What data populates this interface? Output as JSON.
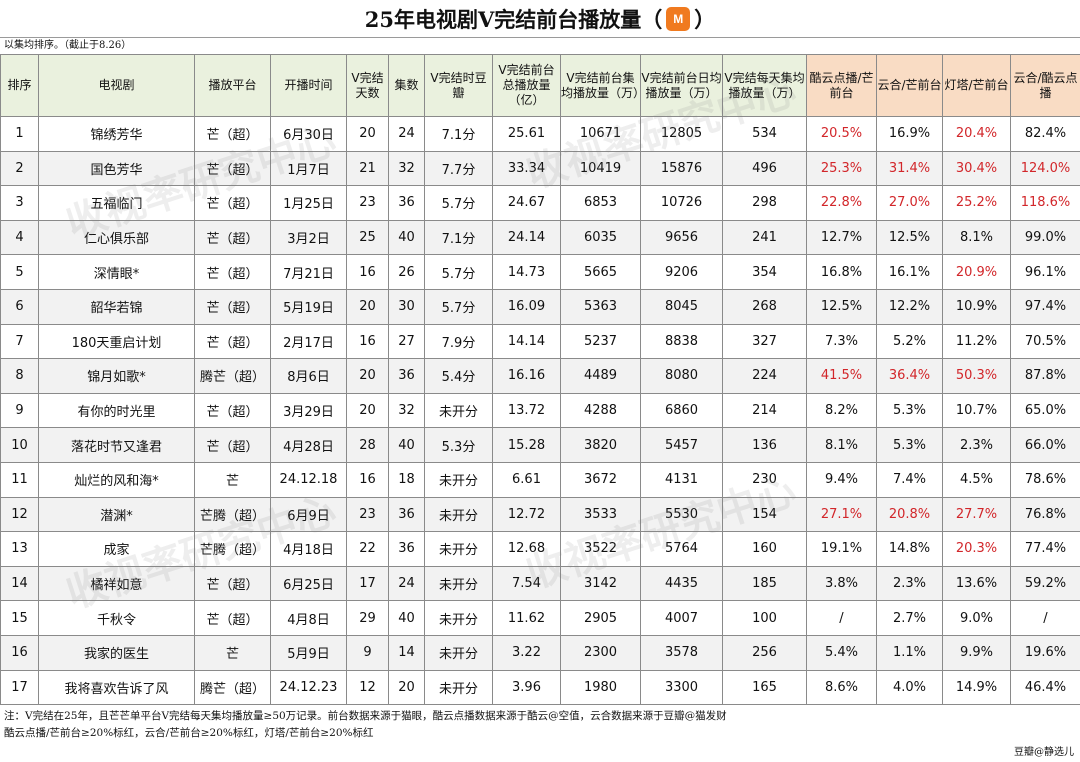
{
  "title": {
    "text": "25年电视剧V完结前台播放量（",
    "logo": "M",
    "close": "）"
  },
  "subtitle": "以集均排序。（截止于8.26）",
  "table": {
    "headers": [
      "排序",
      "电视剧",
      "播放平台",
      "开播时间",
      "V完结天数",
      "集数",
      "V完结时豆瓣",
      "V完结前台总播放量（亿）",
      "V完结前台集均播放量（万）",
      "V完结前台日均播放量（万）",
      "V完结每天集均播放量（万）",
      "酷云点播/芒前台",
      "云合/芒前台",
      "灯塔/芒前台",
      "云合/酷云点播"
    ],
    "rows": [
      [
        "1",
        "锦绣芳华",
        "芒（超）",
        "6月30日",
        "20",
        "24",
        "7.1分",
        "25.61",
        "10671",
        "12805",
        "534",
        "20.5%",
        "16.9%",
        "20.4%",
        "82.4%"
      ],
      [
        "2",
        "国色芳华",
        "芒（超）",
        "1月7日",
        "21",
        "32",
        "7.7分",
        "33.34",
        "10419",
        "15876",
        "496",
        "25.3%",
        "31.4%",
        "30.4%",
        "124.0%"
      ],
      [
        "3",
        "五福临门",
        "芒（超）",
        "1月25日",
        "23",
        "36",
        "5.7分",
        "24.67",
        "6853",
        "10726",
        "298",
        "22.8%",
        "27.0%",
        "25.2%",
        "118.6%"
      ],
      [
        "4",
        "仁心俱乐部",
        "芒（超）",
        "3月2日",
        "25",
        "40",
        "7.1分",
        "24.14",
        "6035",
        "9656",
        "241",
        "12.7%",
        "12.5%",
        "8.1%",
        "99.0%"
      ],
      [
        "5",
        "深情眼*",
        "芒（超）",
        "7月21日",
        "16",
        "26",
        "5.7分",
        "14.73",
        "5665",
        "9206",
        "354",
        "16.8%",
        "16.1%",
        "20.9%",
        "96.1%"
      ],
      [
        "6",
        "韶华若锦",
        "芒（超）",
        "5月19日",
        "20",
        "30",
        "5.7分",
        "16.09",
        "5363",
        "8045",
        "268",
        "12.5%",
        "12.2%",
        "10.9%",
        "97.4%"
      ],
      [
        "7",
        "180天重启计划",
        "芒（超）",
        "2月17日",
        "16",
        "27",
        "7.9分",
        "14.14",
        "5237",
        "8838",
        "327",
        "7.3%",
        "5.2%",
        "11.2%",
        "70.5%"
      ],
      [
        "8",
        "锦月如歌*",
        "腾芒（超）",
        "8月6日",
        "20",
        "36",
        "5.4分",
        "16.16",
        "4489",
        "8080",
        "224",
        "41.5%",
        "36.4%",
        "50.3%",
        "87.8%"
      ],
      [
        "9",
        "有你的时光里",
        "芒（超）",
        "3月29日",
        "20",
        "32",
        "未开分",
        "13.72",
        "4288",
        "6860",
        "214",
        "8.2%",
        "5.3%",
        "10.7%",
        "65.0%"
      ],
      [
        "10",
        "落花时节又逢君",
        "芒（超）",
        "4月28日",
        "28",
        "40",
        "5.3分",
        "15.28",
        "3820",
        "5457",
        "136",
        "8.1%",
        "5.3%",
        "2.3%",
        "66.0%"
      ],
      [
        "11",
        "灿烂的风和海*",
        "芒",
        "24.12.18",
        "16",
        "18",
        "未开分",
        "6.61",
        "3672",
        "4131",
        "230",
        "9.4%",
        "7.4%",
        "4.5%",
        "78.6%"
      ],
      [
        "12",
        "潜渊*",
        "芒腾（超）",
        "6月9日",
        "23",
        "36",
        "未开分",
        "12.72",
        "3533",
        "5530",
        "154",
        "27.1%",
        "20.8%",
        "27.7%",
        "76.8%"
      ],
      [
        "13",
        "成家",
        "芒腾（超）",
        "4月18日",
        "22",
        "36",
        "未开分",
        "12.68",
        "3522",
        "5764",
        "160",
        "19.1%",
        "14.8%",
        "20.3%",
        "77.4%"
      ],
      [
        "14",
        "橘祥如意",
        "芒（超）",
        "6月25日",
        "17",
        "24",
        "未开分",
        "7.54",
        "3142",
        "4435",
        "185",
        "3.8%",
        "2.3%",
        "13.6%",
        "59.2%"
      ],
      [
        "15",
        "千秋令",
        "芒（超）",
        "4月8日",
        "29",
        "40",
        "未开分",
        "11.62",
        "2905",
        "4007",
        "100",
        "/",
        "2.7%",
        "9.0%",
        "/"
      ],
      [
        "16",
        "我家的医生",
        "芒",
        "5月9日",
        "9",
        "14",
        "未开分",
        "3.22",
        "2300",
        "3578",
        "256",
        "5.4%",
        "1.1%",
        "9.9%",
        "19.6%"
      ],
      [
        "17",
        "我将喜欢告诉了风",
        "腾芒（超）",
        "24.12.23",
        "12",
        "20",
        "未开分",
        "3.96",
        "1980",
        "3300",
        "165",
        "8.6%",
        "4.0%",
        "14.9%",
        "46.4%"
      ]
    ],
    "red_cells": {
      "0": [
        11,
        13
      ],
      "1": [
        11,
        12,
        13,
        14
      ],
      "2": [
        11,
        12,
        13,
        14
      ],
      "4": [
        13
      ],
      "7": [
        11,
        12,
        13
      ],
      "11": [
        11,
        12,
        13
      ],
      "12": [
        13
      ]
    }
  },
  "footer": {
    "line1": "注：V完结在25年，且芒芒单平台V完结每天集均播放量≥50万记录。前台数据来源于猫眼，酷云点播数据来源于酷云@空值，云合数据来源于豆瓣@猫发财",
    "line2": "酷云点播/芒前台≥20%标红，云合/芒前台≥20%标红，灯塔/芒前台≥20%标红"
  },
  "credit": "豆瓣@静选儿",
  "watermark": "收视率研究中心",
  "colors": {
    "header_bg": "#eaf1de",
    "header_highlight": "#f9dcc4",
    "red": "#d2262a",
    "logo": "#f07a1f"
  }
}
